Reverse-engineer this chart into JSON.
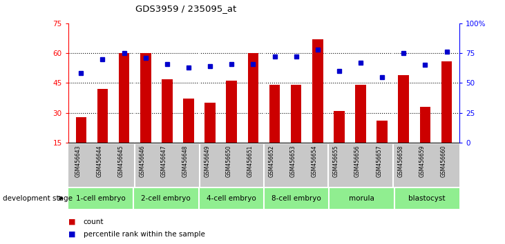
{
  "title": "GDS3959 / 235095_at",
  "samples": [
    "GSM456643",
    "GSM456644",
    "GSM456645",
    "GSM456646",
    "GSM456647",
    "GSM456648",
    "GSM456649",
    "GSM456650",
    "GSM456651",
    "GSM456652",
    "GSM456653",
    "GSM456654",
    "GSM456655",
    "GSM456656",
    "GSM456657",
    "GSM456658",
    "GSM456659",
    "GSM456660"
  ],
  "counts": [
    28,
    42,
    60,
    60,
    47,
    37,
    35,
    46,
    60,
    44,
    44,
    67,
    31,
    44,
    26,
    49,
    33,
    56
  ],
  "percentiles": [
    58,
    70,
    75,
    71,
    66,
    63,
    64,
    66,
    66,
    72,
    72,
    78,
    60,
    67,
    55,
    75,
    65,
    76
  ],
  "ylim_left": [
    15,
    75
  ],
  "ylim_right": [
    0,
    100
  ],
  "yticks_left": [
    15,
    30,
    45,
    60,
    75
  ],
  "yticks_right": [
    0,
    25,
    50,
    75,
    100
  ],
  "ytick_labels_right": [
    "0",
    "25",
    "50",
    "75",
    "100%"
  ],
  "bar_color": "#CC0000",
  "dot_color": "#0000CC",
  "bar_width": 0.5,
  "stages": [
    {
      "label": "1-cell embryo",
      "start": 0,
      "end": 3
    },
    {
      "label": "2-cell embryo",
      "start": 3,
      "end": 6
    },
    {
      "label": "4-cell embryo",
      "start": 6,
      "end": 9
    },
    {
      "label": "8-cell embryo",
      "start": 9,
      "end": 12
    },
    {
      "label": "morula",
      "start": 12,
      "end": 15
    },
    {
      "label": "blastocyst",
      "start": 15,
      "end": 18
    }
  ],
  "stage_color": "#90EE90",
  "xlabel": "development stage",
  "legend_count_label": "count",
  "legend_pct_label": "percentile rank within the sample",
  "tick_bg_color": "#C8C8C8",
  "gridline_yvals": [
    30,
    45,
    60
  ]
}
